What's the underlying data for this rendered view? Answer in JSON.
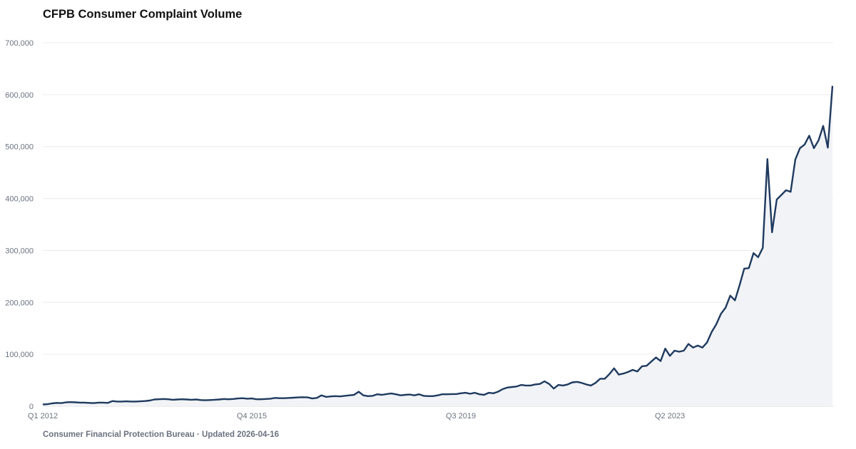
{
  "chart_data": {
    "type": "area",
    "title": "CFPB Consumer Complaint Volume",
    "footer": "Consumer Financial Protection Bureau · Updated 2026-04-16",
    "xlabel": "",
    "ylabel": "",
    "ylim": [
      0,
      700000
    ],
    "y_ticks": [
      0,
      100000,
      200000,
      300000,
      400000,
      500000,
      600000,
      700000
    ],
    "y_tick_labels": [
      "0",
      "100,000",
      "200,000",
      "300,000",
      "400,000",
      "500,000",
      "600,000",
      "700,000"
    ],
    "x_ticks": [
      "2012-01",
      "2015-10",
      "2019-07",
      "2023-04"
    ],
    "x_tick_labels": [
      "Q1 2012",
      "Q4 2015",
      "Q3 2019",
      "Q2 2023"
    ],
    "grid": "horizontal",
    "colors": {
      "line": "#1f3a5f",
      "fill": "#f1f3f6",
      "grid": "#ececec",
      "text": "#6b7280"
    },
    "x": [
      "2012-01",
      "2012-02",
      "2012-03",
      "2012-04",
      "2012-05",
      "2012-06",
      "2012-07",
      "2012-08",
      "2012-09",
      "2012-10",
      "2012-11",
      "2012-12",
      "2013-01",
      "2013-02",
      "2013-03",
      "2013-04",
      "2013-05",
      "2013-06",
      "2013-07",
      "2013-08",
      "2013-09",
      "2013-10",
      "2013-11",
      "2013-12",
      "2014-01",
      "2014-02",
      "2014-03",
      "2014-04",
      "2014-05",
      "2014-06",
      "2014-07",
      "2014-08",
      "2014-09",
      "2014-10",
      "2014-11",
      "2014-12",
      "2015-01",
      "2015-02",
      "2015-03",
      "2015-04",
      "2015-05",
      "2015-06",
      "2015-07",
      "2015-08",
      "2015-09",
      "2015-10",
      "2015-11",
      "2015-12",
      "2016-01",
      "2016-02",
      "2016-03",
      "2016-04",
      "2016-05",
      "2016-06",
      "2016-07",
      "2016-08",
      "2016-09",
      "2016-10",
      "2016-11",
      "2016-12",
      "2017-01",
      "2017-02",
      "2017-03",
      "2017-04",
      "2017-05",
      "2017-06",
      "2017-07",
      "2017-08",
      "2017-09",
      "2017-10",
      "2017-11",
      "2017-12",
      "2018-01",
      "2018-02",
      "2018-03",
      "2018-04",
      "2018-05",
      "2018-06",
      "2018-07",
      "2018-08",
      "2018-09",
      "2018-10",
      "2018-11",
      "2018-12",
      "2019-01",
      "2019-02",
      "2019-03",
      "2019-04",
      "2019-05",
      "2019-06",
      "2019-07",
      "2019-08",
      "2019-09",
      "2019-10",
      "2019-11",
      "2019-12",
      "2020-01",
      "2020-02",
      "2020-03",
      "2020-04",
      "2020-05",
      "2020-06",
      "2020-07",
      "2020-08",
      "2020-09",
      "2020-10",
      "2020-11",
      "2020-12",
      "2021-01",
      "2021-02",
      "2021-03",
      "2021-04",
      "2021-05",
      "2021-06",
      "2021-07",
      "2021-08",
      "2021-09",
      "2021-10",
      "2021-11",
      "2021-12",
      "2022-01",
      "2022-02",
      "2022-03",
      "2022-04",
      "2022-05",
      "2022-06",
      "2022-07",
      "2022-08",
      "2022-09",
      "2022-10",
      "2022-11",
      "2022-12",
      "2023-01",
      "2023-02",
      "2023-03",
      "2023-04",
      "2023-05",
      "2023-06",
      "2023-07",
      "2023-08",
      "2023-09",
      "2023-10",
      "2023-11",
      "2023-12",
      "2024-01",
      "2024-02",
      "2024-03",
      "2024-04",
      "2024-05",
      "2024-06",
      "2024-07",
      "2024-08",
      "2024-09",
      "2024-10",
      "2024-11",
      "2024-12",
      "2025-01",
      "2025-02",
      "2025-03",
      "2025-04",
      "2025-05",
      "2025-06",
      "2025-07",
      "2025-08",
      "2025-09",
      "2025-10",
      "2025-11",
      "2025-12",
      "2026-01",
      "2026-02",
      "2026-03"
    ],
    "values": [
      3500,
      4000,
      5500,
      6500,
      6000,
      7500,
      8000,
      7500,
      7000,
      7000,
      6500,
      6000,
      7000,
      7000,
      6500,
      10000,
      9000,
      9000,
      9500,
      9000,
      9000,
      9500,
      10000,
      11000,
      13000,
      13500,
      14000,
      13500,
      12500,
      13000,
      13500,
      13000,
      12500,
      13000,
      12000,
      11500,
      12000,
      12500,
      13000,
      14000,
      13500,
      14000,
      15000,
      15500,
      14500,
      15000,
      13500,
      13500,
      14000,
      14500,
      16000,
      15500,
      15500,
      16000,
      16500,
      17000,
      17500,
      17000,
      15000,
      16000,
      21000,
      18000,
      19000,
      19500,
      19000,
      20000,
      21000,
      22000,
      28000,
      21000,
      19500,
      20000,
      23000,
      22000,
      23500,
      24500,
      23000,
      21000,
      22000,
      22500,
      21000,
      23000,
      20000,
      19500,
      19500,
      21000,
      23000,
      23000,
      23500,
      23500,
      25000,
      26000,
      24000,
      26000,
      23000,
      22000,
      26000,
      25000,
      28000,
      33000,
      36000,
      37000,
      38000,
      41000,
      40000,
      40000,
      42000,
      43000,
      48000,
      43000,
      34000,
      41000,
      40000,
      42000,
      46000,
      47000,
      45000,
      42000,
      40000,
      45000,
      53000,
      53000,
      62000,
      73000,
      61000,
      63000,
      66000,
      70000,
      67000,
      77000,
      78000,
      86000,
      94000,
      87000,
      111000,
      97000,
      107000,
      105000,
      107000,
      120000,
      113000,
      117000,
      113000,
      123000,
      143000,
      158000,
      178000,
      190000,
      213000,
      204000,
      233000,
      265000,
      266000,
      295000,
      287000,
      305000,
      476000,
      335000,
      398000,
      407000,
      416000,
      413000,
      475000,
      497000,
      504000,
      521000,
      497000,
      512000,
      540000,
      498000,
      617000
    ]
  }
}
